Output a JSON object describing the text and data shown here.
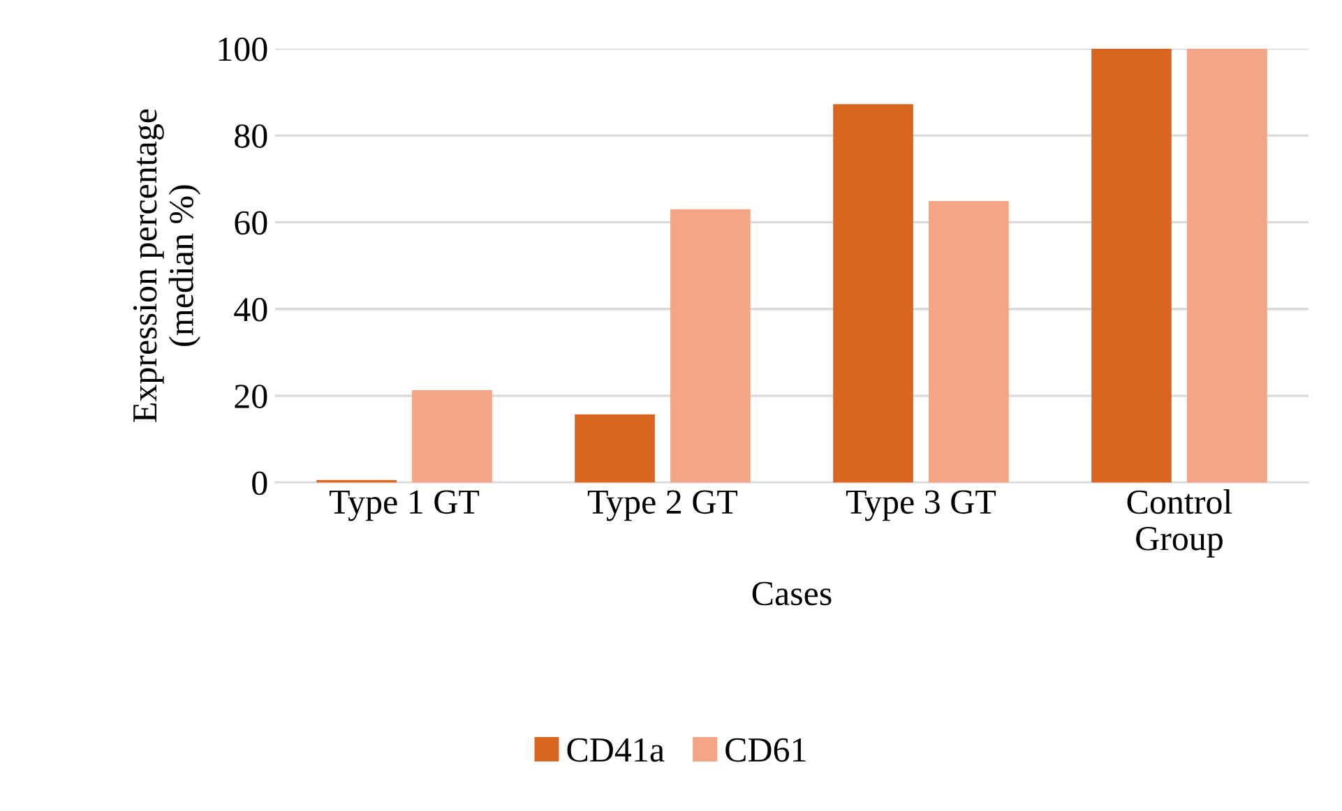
{
  "chart_data": {
    "type": "bar",
    "xlabel": "Cases",
    "ylabel": "Expression percentage\n(median %)",
    "categories": [
      "Type 1 GT",
      "Type 2 GT",
      "Type 3 GT",
      "Control\nGroup"
    ],
    "series": [
      {
        "name": "CD41a",
        "color": "#d9651f",
        "values": [
          0.6,
          15.7,
          87.2,
          100
        ]
      },
      {
        "name": "CD61",
        "color": "#f3a585",
        "values": [
          21.3,
          63,
          64.9,
          100
        ]
      }
    ],
    "ylim": [
      0,
      100
    ],
    "yticks": [
      0,
      20,
      40,
      60,
      80,
      100
    ],
    "grid": "y",
    "legend": "bottom"
  }
}
